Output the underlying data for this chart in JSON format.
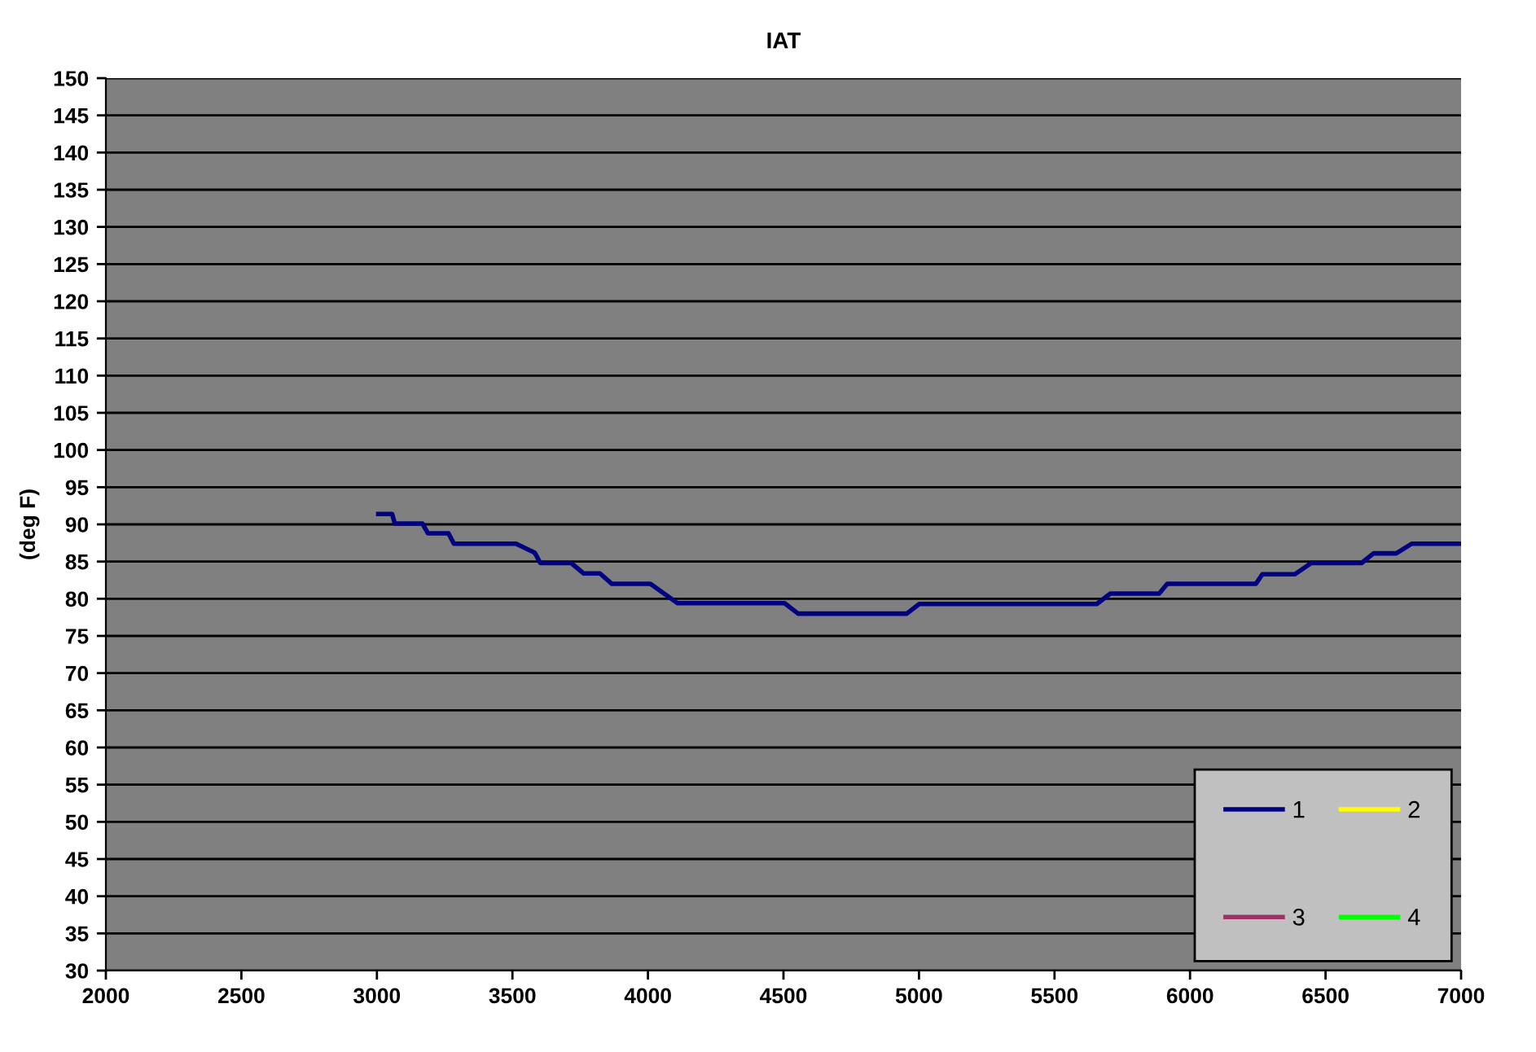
{
  "chart_data": {
    "type": "line",
    "title": "IAT",
    "ylabel": "(deg F)",
    "xlim": [
      2000,
      7000
    ],
    "xticks": [
      2000,
      2500,
      3000,
      3500,
      4000,
      4500,
      5000,
      5500,
      6000,
      6500,
      7000
    ],
    "ylim": [
      30,
      150
    ],
    "yticks": [
      30,
      35,
      40,
      45,
      50,
      55,
      60,
      65,
      70,
      75,
      80,
      85,
      90,
      95,
      100,
      105,
      110,
      115,
      120,
      125,
      130,
      135,
      140,
      145,
      150
    ],
    "grid": "y",
    "legend": "bottom right",
    "series": [
      {
        "name": "1",
        "color": "#000080",
        "x": [
          3005,
          3056,
          3066,
          3168,
          3188,
          3264,
          3284,
          3513,
          3582,
          3603,
          3717,
          3763,
          3823,
          3867,
          4009,
          4109,
          4504,
          4554,
          4955,
          5001,
          5656,
          5706,
          5886,
          5916,
          6243,
          6267,
          6387,
          6447,
          6633,
          6677,
          6761,
          6818,
          7000
        ],
        "values": [
          91.4,
          91.4,
          90.1,
          90.1,
          88.8,
          88.8,
          87.4,
          87.4,
          86.2,
          84.8,
          84.8,
          83.4,
          83.4,
          82.0,
          82.0,
          79.4,
          79.4,
          78.0,
          78.0,
          79.3,
          79.3,
          80.7,
          80.7,
          82.0,
          82.0,
          83.3,
          83.3,
          84.8,
          84.8,
          86.1,
          86.1,
          87.4,
          87.4
        ]
      },
      {
        "name": "2",
        "color": "#ffff00"
      },
      {
        "name": "3",
        "color": "#993366"
      },
      {
        "name": "4",
        "color": "#00ff00"
      }
    ]
  }
}
